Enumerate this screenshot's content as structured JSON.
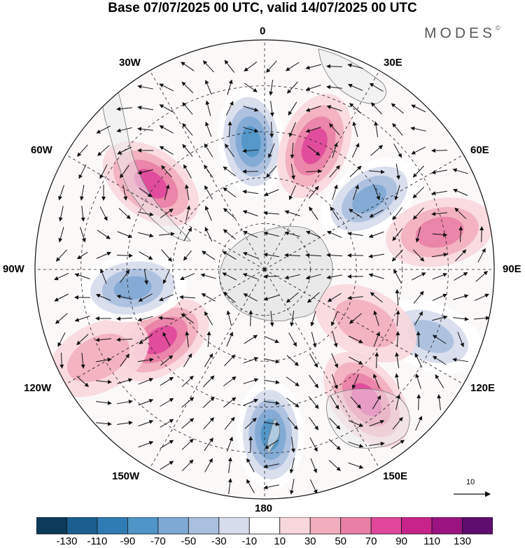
{
  "title": "Base 07/07/2025 00 UTC, valid 14/07/2025 00 UTC",
  "brand": "MODES",
  "brand_mark": "©",
  "projection": "south polar stereographic",
  "longitude_labels": {
    "0": "0",
    "30E": "30E",
    "60E": "60E",
    "90E": "90E",
    "120E": "120E",
    "150E": "150E",
    "180": "180",
    "150W": "150W",
    "120W": "120W",
    "90W": "90W",
    "60W": "60W",
    "30W": "30W"
  },
  "vector_reference": {
    "value": "10"
  },
  "colorbar": {
    "ticks": [
      "-130",
      "-110",
      "-90",
      "-70",
      "-50",
      "-30",
      "-10",
      "10",
      "30",
      "50",
      "70",
      "90",
      "110",
      "130"
    ],
    "colors": [
      "#0b3a5a",
      "#1a5f8f",
      "#2f7bb3",
      "#4f95c8",
      "#7ea9d4",
      "#a9bfde",
      "#d6dcec",
      "#ffffff",
      "#f8d7dd",
      "#f2aebe",
      "#ea7fa6",
      "#e0479a",
      "#c8238a",
      "#9a1380",
      "#5e0d6e"
    ]
  },
  "anomaly_centers": [
    {
      "sign": "negative",
      "level": -90,
      "lon": -6,
      "lat_ring": 0.56
    },
    {
      "sign": "positive",
      "level": 70,
      "lon": 22,
      "lat_ring": 0.58
    },
    {
      "sign": "negative",
      "level": -70,
      "lon": 56,
      "lat_ring": 0.55
    },
    {
      "sign": "positive",
      "level": 50,
      "lon": 78,
      "lat_ring": 0.78
    },
    {
      "sign": "negative",
      "level": -50,
      "lon": 112,
      "lat_ring": 0.78
    },
    {
      "sign": "positive",
      "level": 30,
      "lon": 118,
      "lat_ring": 0.5
    },
    {
      "sign": "positive",
      "level": 70,
      "lon": 142,
      "lat_ring": 0.72
    },
    {
      "sign": "negative",
      "level": -90,
      "lon": 178,
      "lat_ring": 0.72
    },
    {
      "sign": "positive",
      "level": 70,
      "lon": -124,
      "lat_ring": 0.55
    },
    {
      "sign": "positive",
      "level": 30,
      "lon": -118,
      "lat_ring": 0.82
    },
    {
      "sign": "negative",
      "level": -70,
      "lon": -98,
      "lat_ring": 0.58
    },
    {
      "sign": "positive",
      "level": 70,
      "lon": -53,
      "lat_ring": 0.62
    }
  ]
}
